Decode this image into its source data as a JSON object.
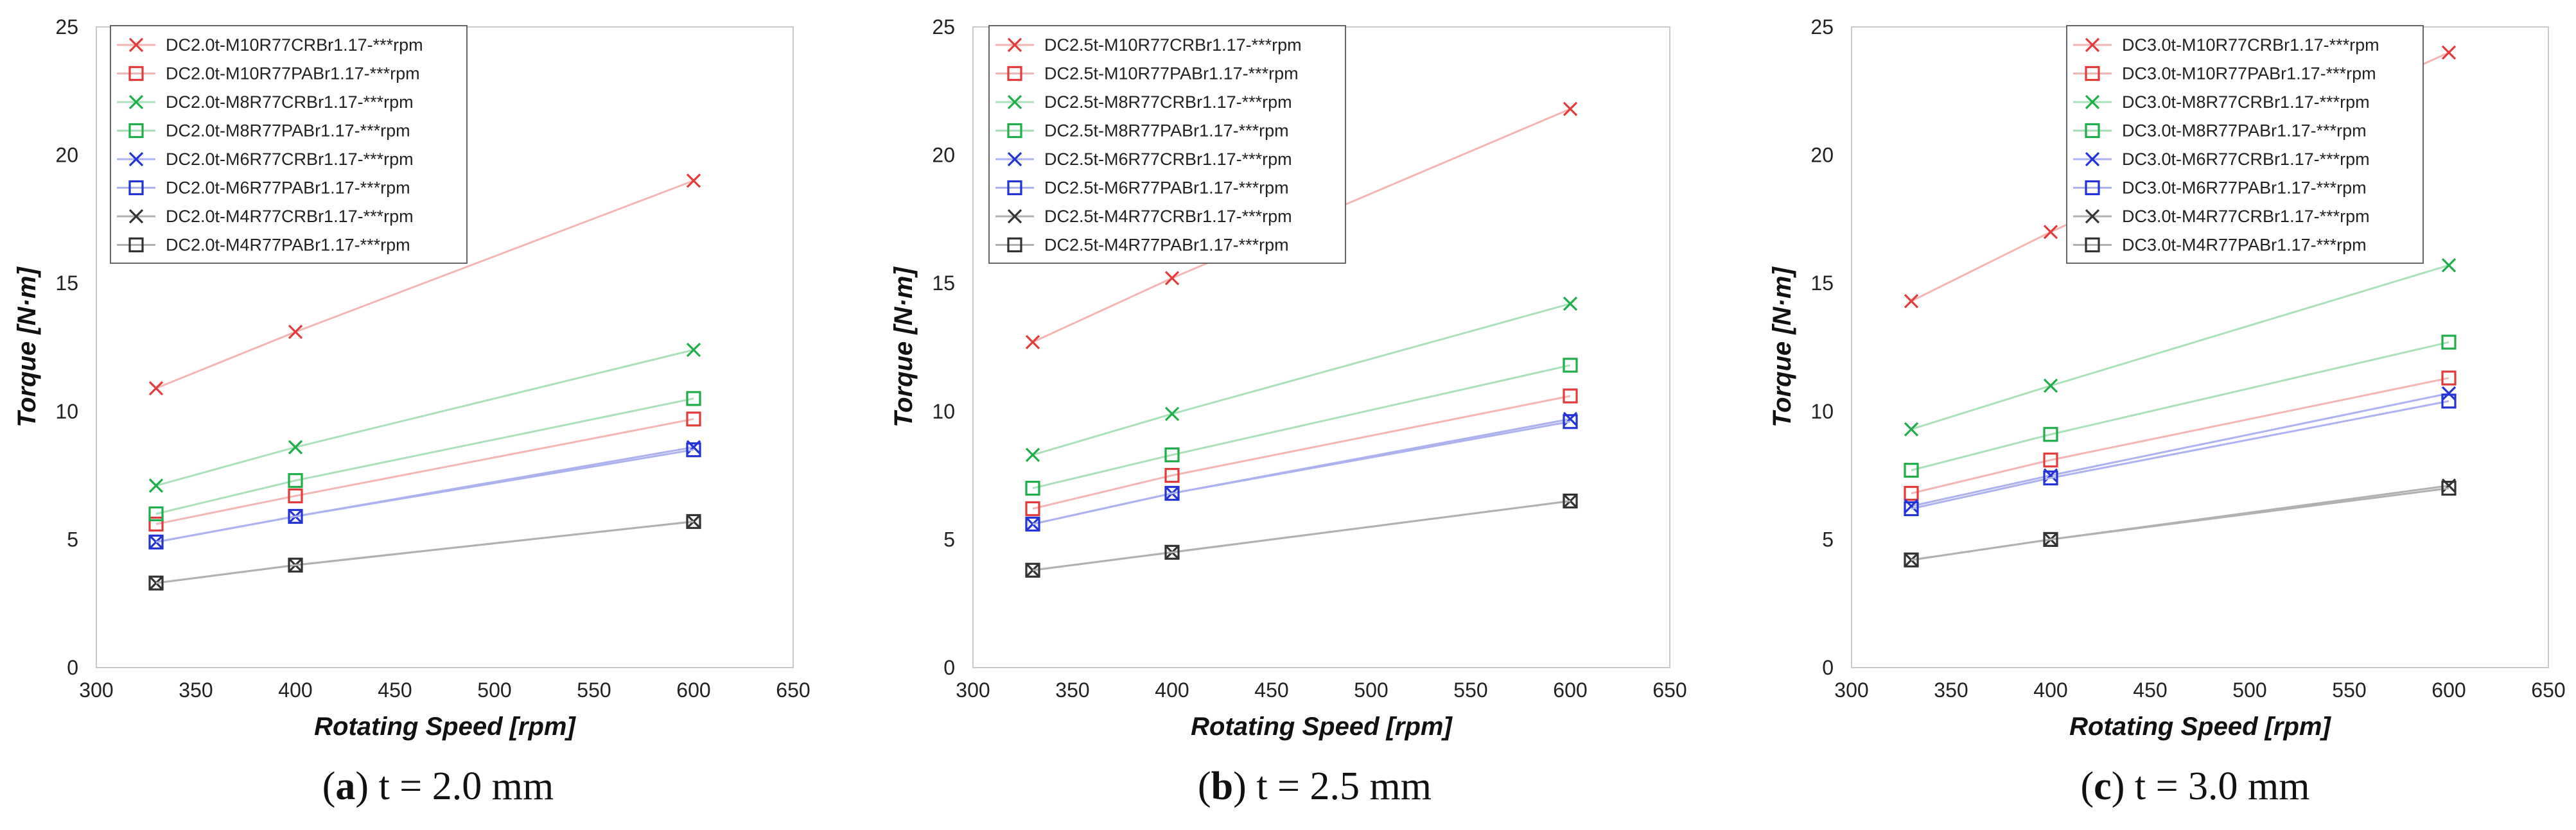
{
  "colors": {
    "CR": "#e23b3b",
    "PA": "#e23b3b"
  },
  "chart_data": [
    {
      "type": "line",
      "panel": "a",
      "caption": {
        "letter": "a",
        "text": "t = 2.0 mm"
      },
      "xlabel": "Rotating Speed [rpm]",
      "ylabel": "Torque [N·m]",
      "xlim": [
        300,
        650
      ],
      "ylim": [
        0,
        25
      ],
      "xticks": [
        300,
        350,
        400,
        450,
        500,
        550,
        600,
        650
      ],
      "yticks": [
        0,
        5,
        10,
        15,
        20,
        25
      ],
      "x": [
        330,
        400,
        600
      ],
      "series": [
        {
          "name": "DC2.0t-M10R77CRBr1.17-***rpm",
          "color": "#e23b3b",
          "marker": "x",
          "values": [
            10.9,
            13.1,
            19.0
          ]
        },
        {
          "name": "DC2.0t-M10R77PABr1.17-***rpm",
          "color": "#e23b3b",
          "marker": "square",
          "values": [
            5.6,
            6.7,
            9.7
          ]
        },
        {
          "name": "DC2.0t-M8R77CRBr1.17-***rpm",
          "color": "#1fae4a",
          "marker": "x",
          "values": [
            7.1,
            8.6,
            12.4
          ]
        },
        {
          "name": "DC2.0t-M8R77PABr1.17-***rpm",
          "color": "#1fae4a",
          "marker": "square",
          "values": [
            6.0,
            7.3,
            10.5
          ]
        },
        {
          "name": "DC2.0t-M6R77CRBr1.17-***rpm",
          "color": "#2433d6",
          "marker": "x",
          "values": [
            4.9,
            5.9,
            8.6
          ]
        },
        {
          "name": "DC2.0t-M6R77PABr1.17-***rpm",
          "color": "#2433d6",
          "marker": "square",
          "values": [
            4.9,
            5.9,
            8.5
          ]
        },
        {
          "name": "DC2.0t-M4R77CRBr1.17-***rpm",
          "color": "#333333",
          "marker": "x",
          "values": [
            3.3,
            4.0,
            5.7
          ]
        },
        {
          "name": "DC2.0t-M4R77PABr1.17-***rpm",
          "color": "#333333",
          "marker": "square",
          "values": [
            3.3,
            4.0,
            5.7
          ]
        }
      ]
    },
    {
      "type": "line",
      "panel": "b",
      "caption": {
        "letter": "b",
        "text": "t = 2.5 mm"
      },
      "xlabel": "Rotating Speed [rpm]",
      "ylabel": "Torque [N·m]",
      "xlim": [
        300,
        650
      ],
      "ylim": [
        0,
        25
      ],
      "xticks": [
        300,
        350,
        400,
        450,
        500,
        550,
        600,
        650
      ],
      "yticks": [
        0,
        5,
        10,
        15,
        20,
        25
      ],
      "x": [
        330,
        400,
        600
      ],
      "series": [
        {
          "name": "DC2.5t-M10R77CRBr1.17-***rpm",
          "color": "#e23b3b",
          "marker": "x",
          "values": [
            12.7,
            15.2,
            21.8
          ]
        },
        {
          "name": "DC2.5t-M10R77PABr1.17-***rpm",
          "color": "#e23b3b",
          "marker": "square",
          "values": [
            6.2,
            7.5,
            10.6
          ]
        },
        {
          "name": "DC2.5t-M8R77CRBr1.17-***rpm",
          "color": "#1fae4a",
          "marker": "x",
          "values": [
            8.3,
            9.9,
            14.2
          ]
        },
        {
          "name": "DC2.5t-M8R77PABr1.17-***rpm",
          "color": "#1fae4a",
          "marker": "square",
          "values": [
            7.0,
            8.3,
            11.8
          ]
        },
        {
          "name": "DC2.5t-M6R77CRBr1.17-***rpm",
          "color": "#2433d6",
          "marker": "x",
          "values": [
            5.6,
            6.8,
            9.7
          ]
        },
        {
          "name": "DC2.5t-M6R77PABr1.17-***rpm",
          "color": "#2433d6",
          "marker": "square",
          "values": [
            5.6,
            6.8,
            9.6
          ]
        },
        {
          "name": "DC2.5t-M4R77CRBr1.17-***rpm",
          "color": "#333333",
          "marker": "x",
          "values": [
            3.8,
            4.5,
            6.5
          ]
        },
        {
          "name": "DC2.5t-M4R77PABr1.17-***rpm",
          "color": "#333333",
          "marker": "square",
          "values": [
            3.8,
            4.5,
            6.5
          ]
        }
      ]
    },
    {
      "type": "line",
      "panel": "c",
      "caption": {
        "letter": "c",
        "text": "t = 3.0 mm"
      },
      "xlabel": "Rotating Speed [rpm]",
      "ylabel": "Torque [N·m]",
      "xlim": [
        300,
        650
      ],
      "ylim": [
        0,
        25
      ],
      "xticks": [
        300,
        350,
        400,
        450,
        500,
        550,
        600,
        650
      ],
      "yticks": [
        0,
        5,
        10,
        15,
        20,
        25
      ],
      "x": [
        330,
        400,
        600
      ],
      "series": [
        {
          "name": "DC3.0t-M10R77CRBr1.17-***rpm",
          "color": "#e23b3b",
          "marker": "x",
          "values": [
            14.3,
            17.0,
            24.0
          ]
        },
        {
          "name": "DC3.0t-M10R77PABr1.17-***rpm",
          "color": "#e23b3b",
          "marker": "square",
          "values": [
            6.8,
            8.1,
            11.3
          ]
        },
        {
          "name": "DC3.0t-M8R77CRBr1.17-***rpm",
          "color": "#1fae4a",
          "marker": "x",
          "values": [
            9.3,
            11.0,
            15.7
          ]
        },
        {
          "name": "DC3.0t-M8R77PABr1.17-***rpm",
          "color": "#1fae4a",
          "marker": "square",
          "values": [
            7.7,
            9.1,
            12.7
          ]
        },
        {
          "name": "DC3.0t-M6R77CRBr1.17-***rpm",
          "color": "#2433d6",
          "marker": "x",
          "values": [
            6.3,
            7.5,
            10.7
          ]
        },
        {
          "name": "DC3.0t-M6R77PABr1.17-***rpm",
          "color": "#2433d6",
          "marker": "square",
          "values": [
            6.2,
            7.4,
            10.4
          ]
        },
        {
          "name": "DC3.0t-M4R77CRBr1.17-***rpm",
          "color": "#333333",
          "marker": "x",
          "values": [
            4.2,
            5.0,
            7.1
          ]
        },
        {
          "name": "DC3.0t-M4R77PABr1.17-***rpm",
          "color": "#333333",
          "marker": "square",
          "values": [
            4.2,
            5.0,
            7.0
          ]
        }
      ]
    }
  ]
}
